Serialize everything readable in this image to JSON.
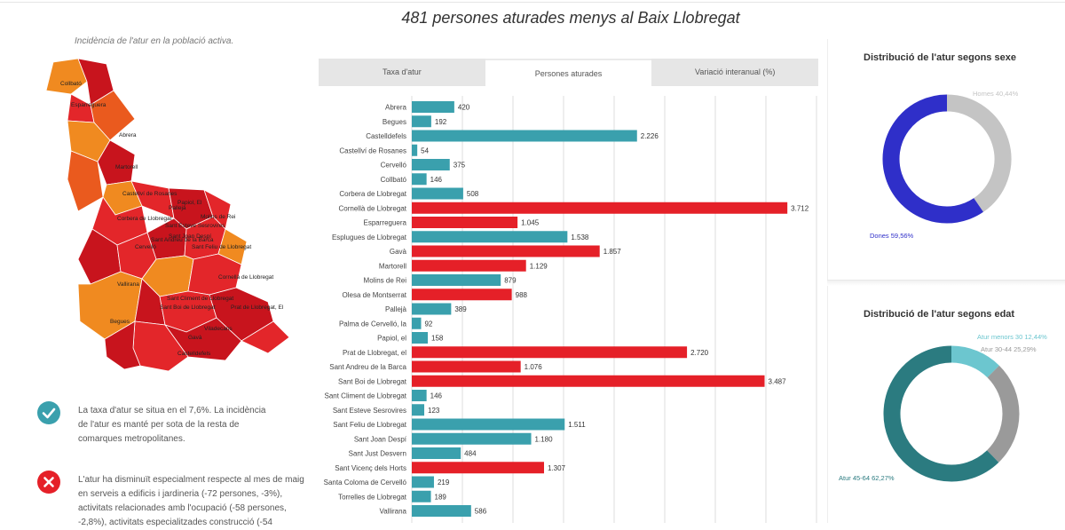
{
  "header": {
    "title": "481 persones aturades menys al Baix Llobregat",
    "subtitle": "Incidència de l'atur en la població activa."
  },
  "map": {
    "labels": [
      "Collbató",
      "Esparreguera",
      "Abrera",
      "Martorell",
      "Castellví de Rosanes",
      "Pallejà",
      "Papiol, El",
      "Molins de Rei",
      "Sant Esteve Sesrovires",
      "Corbera de Llobregat",
      "Sant Andreu de la Barca",
      "Sant Joan Despí",
      "Sant Feliu de Llobregat",
      "Vallirana",
      "Cervelló",
      "Cornellà de Llobregat",
      "Sant Climent de Llobregat",
      "Sant Boi de Llobregat",
      "Begues",
      "Prat de Llobregat, El",
      "Viladecans",
      "Gavà",
      "Castelldefels"
    ],
    "colors": {
      "dark": "#c8141d",
      "red": "#e3262a",
      "orange_red": "#ea5a1e",
      "orange": "#f08a20",
      "light_orange": "#f7a23a"
    }
  },
  "notes": [
    {
      "icon": "check-icon",
      "color": "#3aa0ad",
      "text_lines": [
        "La taxa d'atur se situa en el 7,6%. La incidència",
        "de l'atur es manté per sota de la resta de",
        "comarques metropolitanes."
      ]
    },
    {
      "icon": "cross-icon",
      "color": "#e52028",
      "text_lines": [
        "L'atur ha disminuït especialment respecte al mes de maig",
        "en serveis a edificis i jardineria (-72 persones,  -3%),",
        "activitats relacionades amb l'ocupació (-58 persones,",
        "-2,8%), activitats especialitzades construcció (-54"
      ]
    }
  ],
  "tabs": [
    {
      "label": "Taxa d'atur",
      "active": false
    },
    {
      "label": "Persones aturades",
      "active": true
    },
    {
      "label": "Variació interanual (%)",
      "active": false
    }
  ],
  "chart_data": [
    {
      "type": "bar",
      "orientation": "horizontal",
      "title": "Persones aturades",
      "categories": [
        "Abrera",
        "Begues",
        "Castelldefels",
        "Castellví de Rosanes",
        "Cervelló",
        "Collbató",
        "Corbera de Llobregat",
        "Cornellà de Llobregat",
        "Esparreguera",
        "Esplugues de Llobregat",
        "Gavà",
        "Martorell",
        "Molins de Rei",
        "Olesa de Montserrat",
        "Pallejà",
        "Palma de Cervelló, la",
        "Papiol, el",
        "Prat de Llobregat, el",
        "Sant Andreu de la Barca",
        "Sant Boi de Llobregat",
        "Sant Climent de Llobregat",
        "Sant Esteve Sesrovires",
        "Sant Feliu de Llobregat",
        "Sant Joan Despí",
        "Sant Just Desvern",
        "Sant Vicenç dels Horts",
        "Santa Coloma de Cervelló",
        "Torrelles de Llobregat",
        "Vallirana"
      ],
      "values": [
        420,
        192,
        2226,
        54,
        375,
        146,
        508,
        3712,
        1045,
        1538,
        1857,
        1129,
        879,
        988,
        389,
        92,
        158,
        2720,
        1076,
        3487,
        146,
        123,
        1511,
        1180,
        484,
        1307,
        219,
        189,
        586
      ],
      "value_labels": [
        "420",
        "192",
        "2.226",
        "54",
        "375",
        "146",
        "508",
        "3.712",
        "1.045",
        "1.538",
        "1.857",
        "1.129",
        "879",
        "988",
        "389",
        "92",
        "158",
        "2.720",
        "1.076",
        "3.487",
        "146",
        "123",
        "1.511",
        "1.180",
        "484",
        "1.307",
        "219",
        "189",
        "586"
      ],
      "highlight": [
        false,
        false,
        false,
        false,
        false,
        false,
        false,
        true,
        true,
        false,
        true,
        true,
        false,
        true,
        false,
        false,
        false,
        true,
        true,
        true,
        false,
        false,
        false,
        false,
        false,
        true,
        false,
        false,
        false
      ],
      "colors": {
        "normal": "#3aa0ad",
        "highlight": "#e52028"
      },
      "xlim": [
        0,
        4000
      ],
      "grid": true
    },
    {
      "type": "pie",
      "title": "Distribució de l'atur segons sexe",
      "labels": [
        "Homes 40,44%",
        "Dones 59,56%"
      ],
      "values": [
        40.44,
        59.56
      ],
      "colors": [
        "#c4c4c4",
        "#2f2fc9"
      ]
    },
    {
      "type": "pie",
      "title": "Distribució de l'atur segons edat",
      "labels": [
        "Atur menors 30 12,44%",
        "Atur 30-44 25,29%",
        "Atur 45-64 62,27%"
      ],
      "values": [
        12.44,
        25.29,
        62.27
      ],
      "colors": [
        "#6cc6cf",
        "#9a9a9a",
        "#2b7b80"
      ]
    }
  ]
}
